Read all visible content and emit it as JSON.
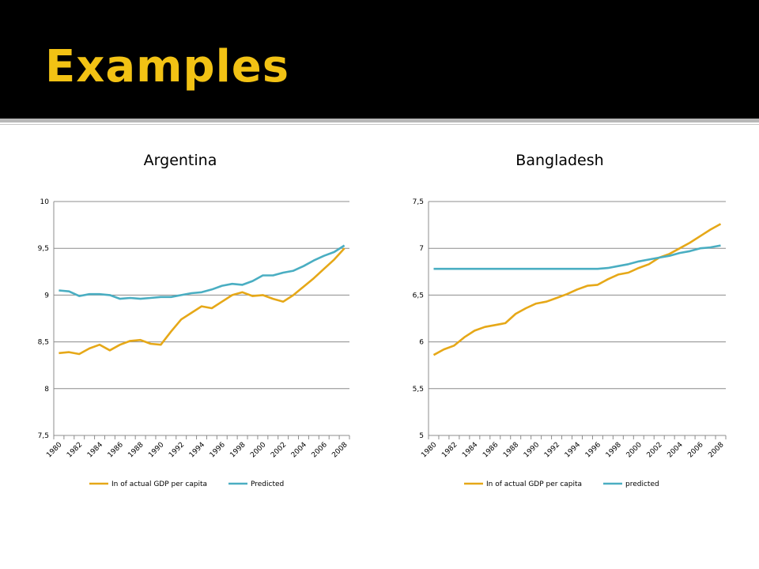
{
  "slide": {
    "title": "Examples"
  },
  "colors": {
    "header_bg": "#000000",
    "title": "#f2c214",
    "actual": "#e6a818",
    "predicted": "#4aaec2"
  },
  "chart_data": [
    {
      "type": "line",
      "title": "Argentina",
      "x": [
        1980,
        1981,
        1982,
        1983,
        1984,
        1985,
        1986,
        1987,
        1988,
        1989,
        1990,
        1991,
        1992,
        1993,
        1994,
        1995,
        1996,
        1997,
        1998,
        1999,
        2000,
        2001,
        2002,
        2003,
        2004,
        2005,
        2006,
        2007,
        2008
      ],
      "x_tick_labels": [
        "1980",
        "1982",
        "1984",
        "1986",
        "1988",
        "1990",
        "1992",
        "1994",
        "1996",
        "1998",
        "2000",
        "2002",
        "2004",
        "2006",
        "2008"
      ],
      "y_tick_labels": [
        "10",
        "9,5",
        "9",
        "8,5",
        "8",
        "7,5"
      ],
      "y_ticks": [
        10,
        9.5,
        9,
        8.5,
        8,
        7.5
      ],
      "ylim": [
        7.5,
        10
      ],
      "grid": true,
      "legend": "bottom",
      "series": [
        {
          "name": "In of actual GDP per capita",
          "color": "#e6a818",
          "values": [
            8.38,
            8.39,
            8.37,
            8.43,
            8.47,
            8.41,
            8.47,
            8.51,
            8.52,
            8.48,
            8.47,
            8.61,
            8.74,
            8.81,
            8.88,
            8.86,
            8.93,
            9.0,
            9.03,
            8.99,
            9.0,
            8.96,
            8.93,
            9.0,
            9.09,
            9.18,
            9.28,
            9.38,
            9.5
          ]
        },
        {
          "name": "Predicted",
          "color": "#4aaec2",
          "values": [
            9.05,
            9.04,
            8.99,
            9.01,
            9.01,
            9.0,
            8.96,
            8.97,
            8.96,
            8.97,
            8.98,
            8.98,
            9.0,
            9.02,
            9.03,
            9.06,
            9.1,
            9.12,
            9.11,
            9.15,
            9.21,
            9.21,
            9.24,
            9.26,
            9.31,
            9.37,
            9.42,
            9.46,
            9.53
          ]
        }
      ]
    },
    {
      "type": "line",
      "title": "Bangladesh",
      "x": [
        1980,
        1981,
        1982,
        1983,
        1984,
        1985,
        1986,
        1987,
        1988,
        1989,
        1990,
        1991,
        1992,
        1993,
        1994,
        1995,
        1996,
        1997,
        1998,
        1999,
        2000,
        2001,
        2002,
        2003,
        2004,
        2005,
        2006,
        2007,
        2008
      ],
      "x_tick_labels": [
        "1980",
        "1982",
        "1984",
        "1986",
        "1988",
        "1990",
        "1992",
        "1994",
        "1996",
        "1998",
        "2000",
        "2002",
        "2004",
        "2006",
        "2008"
      ],
      "y_tick_labels": [
        "7,5",
        "7",
        "6,5",
        "6",
        "5,5",
        "5"
      ],
      "y_ticks": [
        7.5,
        7,
        6.5,
        6,
        5.5,
        5
      ],
      "ylim": [
        5,
        7.5
      ],
      "grid": true,
      "legend": "bottom",
      "series": [
        {
          "name": "In of actual GDP per capita",
          "color": "#e6a818",
          "values": [
            5.86,
            5.92,
            5.96,
            6.05,
            6.12,
            6.16,
            6.18,
            6.2,
            6.3,
            6.36,
            6.41,
            6.43,
            6.47,
            6.51,
            6.56,
            6.6,
            6.61,
            6.67,
            6.72,
            6.74,
            6.79,
            6.83,
            6.9,
            6.94,
            7.0,
            7.06,
            7.13,
            7.2,
            7.26
          ]
        },
        {
          "name": "predicted",
          "color": "#4aaec2",
          "values": [
            6.78,
            6.78,
            6.78,
            6.78,
            6.78,
            6.78,
            6.78,
            6.78,
            6.78,
            6.78,
            6.78,
            6.78,
            6.78,
            6.78,
            6.78,
            6.78,
            6.78,
            6.79,
            6.81,
            6.83,
            6.86,
            6.88,
            6.9,
            6.92,
            6.95,
            6.97,
            7.0,
            7.01,
            7.03
          ]
        }
      ]
    }
  ]
}
